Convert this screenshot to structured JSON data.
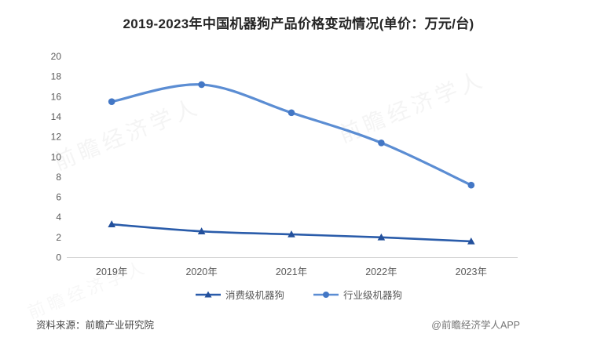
{
  "title": "2019-2023年中国机器狗产品价格变动情况(单价：万元/台)",
  "footer": {
    "source": "资料来源：前瞻产业研究院",
    "credit": "@前瞻经济学人APP"
  },
  "watermark": "前瞻经济学人",
  "colors": {
    "consumer_line": "#2a5caa",
    "industry_line": "#5b8dd3",
    "axis": "#d6d6d6",
    "tick_labels": "#595959",
    "title_text": "#262626"
  },
  "chart_data": {
    "type": "line",
    "title": "2019-2023年中国机器狗产品价格变动情况(单价：万元/台)",
    "categories": [
      "2019年",
      "2020年",
      "2021年",
      "2022年",
      "2023年"
    ],
    "series": [
      {
        "name": "消费级机器狗",
        "values": [
          3.3,
          2.6,
          2.3,
          2.0,
          1.6
        ],
        "color": "#2a5caa",
        "marker_color": "#23509c",
        "marker": "triangle"
      },
      {
        "name": "行业级机器狗",
        "values": [
          15.5,
          17.2,
          14.4,
          11.4,
          7.2
        ],
        "color": "#5b8dd3",
        "marker_color": "#4377c5",
        "marker": "circle"
      }
    ],
    "xlabel": "",
    "ylabel": "",
    "ylim": [
      0,
      20
    ],
    "ytick_step": 2,
    "grid": false,
    "smooth": true,
    "legend_position": "bottom",
    "axis_color": "#d6d6d6",
    "tick_label_color": "#595959"
  }
}
